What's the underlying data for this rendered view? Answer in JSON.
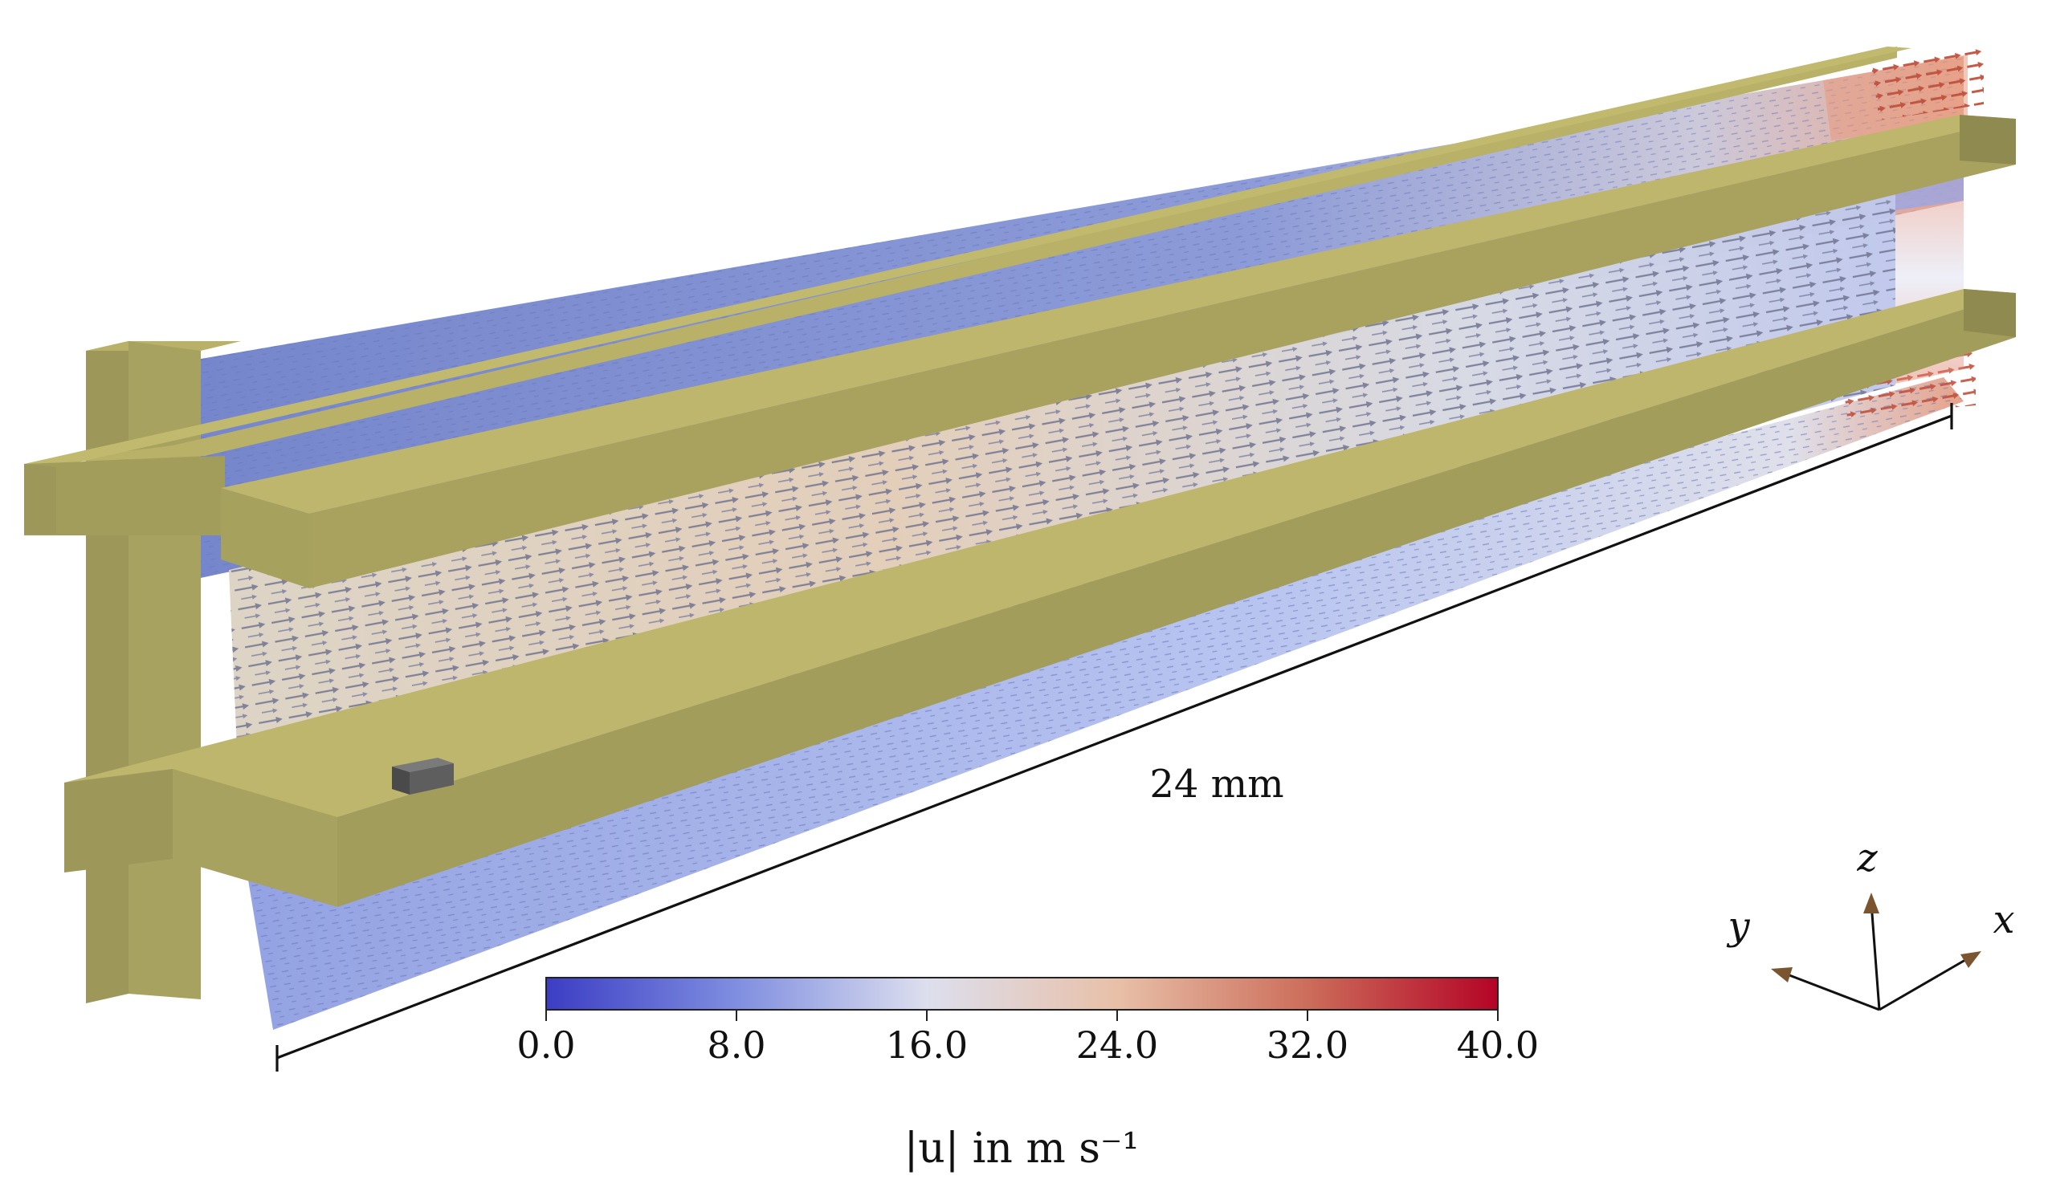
{
  "dimension": {
    "label": "24 mm"
  },
  "colorbar": {
    "ticks": [
      "0.0",
      "8.0",
      "16.0",
      "24.0",
      "32.0",
      "40.0"
    ],
    "label": "|u| in m s⁻¹",
    "min": 0,
    "max": 40,
    "colors": [
      "#3b3dc4",
      "#7f8ee0",
      "#dddfee",
      "#e8c0a8",
      "#cc6d5a",
      "#b40426"
    ]
  },
  "axes": {
    "x": "x",
    "y": "y",
    "z": "z",
    "arrow_color": "#7a5530"
  },
  "colors": {
    "rail_top": "#b8b167",
    "rail_front": "#9d975a",
    "rail_end": "#838049",
    "flow_low": "#6f7fc9",
    "flow_mid": "#ddd6c8",
    "flow_high": "#d98a6e",
    "obstacle": "#555555"
  }
}
